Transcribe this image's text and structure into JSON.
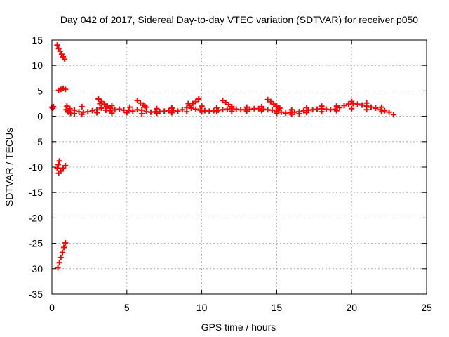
{
  "chart_data": {
    "type": "scatter",
    "title": "Day 042 of 2017, Sidereal Day-to-day VTEC variation (SDTVAR) for receiver p050",
    "xlabel": "GPS time / hours",
    "ylabel": "SDTVAR / TECUs",
    "xlim": [
      0,
      25
    ],
    "ylim": [
      -35,
      15
    ],
    "xticks": [
      0,
      5,
      10,
      15,
      20,
      25
    ],
    "yticks": [
      15,
      10,
      5,
      0,
      -5,
      -10,
      -15,
      -20,
      -25,
      -30,
      -35
    ],
    "grid": true,
    "marker": "plus",
    "series": [
      {
        "color": "#ff0000",
        "values": [
          [
            0.0,
            1.8
          ],
          [
            0.05,
            1.6
          ],
          [
            0.1,
            1.9
          ],
          [
            0.35,
            14.0
          ],
          [
            0.45,
            13.3
          ],
          [
            0.55,
            12.8
          ],
          [
            0.65,
            12.2
          ],
          [
            0.75,
            11.7
          ],
          [
            0.85,
            11.2
          ],
          [
            0.45,
            5.1
          ],
          [
            0.6,
            5.3
          ],
          [
            0.75,
            5.5
          ],
          [
            0.9,
            5.3
          ],
          [
            0.35,
            -10.2
          ],
          [
            0.42,
            -9.5
          ],
          [
            0.5,
            -8.8
          ],
          [
            0.45,
            -11.2
          ],
          [
            0.6,
            -10.8
          ],
          [
            0.75,
            -10.2
          ],
          [
            0.9,
            -9.7
          ],
          [
            0.4,
            -29.8
          ],
          [
            0.5,
            -28.8
          ],
          [
            0.6,
            -27.8
          ],
          [
            0.7,
            -26.8
          ],
          [
            0.8,
            -25.8
          ],
          [
            0.9,
            -24.9
          ],
          [
            1.2,
            1.5
          ],
          [
            1.5,
            1.2
          ],
          [
            1.8,
            0.9
          ],
          [
            2.1,
            0.8
          ],
          [
            2.4,
            0.9
          ],
          [
            2.7,
            1.1
          ],
          [
            3.0,
            1.3
          ],
          [
            3.3,
            1.6
          ],
          [
            3.6,
            1.2
          ],
          [
            3.9,
            1.1
          ],
          [
            4.2,
            1.3
          ],
          [
            4.5,
            1.4
          ],
          [
            4.8,
            1.2
          ],
          [
            5.1,
            1.1
          ],
          [
            5.4,
            1.0
          ],
          [
            5.7,
            1.3
          ],
          [
            6.0,
            1.2
          ],
          [
            6.3,
            0.9
          ],
          [
            6.6,
            0.8
          ],
          [
            6.9,
            0.9
          ],
          [
            7.2,
            0.9
          ],
          [
            7.5,
            1.0
          ],
          [
            7.8,
            1.1
          ],
          [
            8.1,
            1.1
          ],
          [
            8.4,
            1.0
          ],
          [
            8.7,
            1.3
          ],
          [
            9.0,
            1.7
          ],
          [
            9.3,
            1.6
          ],
          [
            9.6,
            1.4
          ],
          [
            9.9,
            1.2
          ],
          [
            10.2,
            1.1
          ],
          [
            10.5,
            1.0
          ],
          [
            10.8,
            1.1
          ],
          [
            11.1,
            1.2
          ],
          [
            11.4,
            1.3
          ],
          [
            11.7,
            1.4
          ],
          [
            12.0,
            1.5
          ],
          [
            12.3,
            1.4
          ],
          [
            12.6,
            1.3
          ],
          [
            12.9,
            1.3
          ],
          [
            13.2,
            1.4
          ],
          [
            13.5,
            1.5
          ],
          [
            13.8,
            1.5
          ],
          [
            14.1,
            1.4
          ],
          [
            14.4,
            1.3
          ],
          [
            14.7,
            1.2
          ],
          [
            15.0,
            1.0
          ],
          [
            15.3,
            0.8
          ],
          [
            15.6,
            0.6
          ],
          [
            15.9,
            0.7
          ],
          [
            16.2,
            0.8
          ],
          [
            16.5,
            0.9
          ],
          [
            16.8,
            1.1
          ],
          [
            17.1,
            1.2
          ],
          [
            17.4,
            1.3
          ],
          [
            17.7,
            1.4
          ],
          [
            18.0,
            1.5
          ],
          [
            18.3,
            1.4
          ],
          [
            18.6,
            1.3
          ],
          [
            18.9,
            1.4
          ],
          [
            19.2,
            1.7
          ],
          [
            19.5,
            2.1
          ],
          [
            19.8,
            2.4
          ],
          [
            20.1,
            2.5
          ],
          [
            20.4,
            2.4
          ],
          [
            20.7,
            2.2
          ],
          [
            21.0,
            2.0
          ],
          [
            21.3,
            1.8
          ],
          [
            21.6,
            1.6
          ],
          [
            21.9,
            1.3
          ],
          [
            22.2,
            1.1
          ],
          [
            22.5,
            0.8
          ],
          [
            22.8,
            0.3
          ],
          [
            1.5,
            0.5
          ],
          [
            2.0,
            0.4
          ],
          [
            3.0,
            0.7
          ],
          [
            4.0,
            0.6
          ],
          [
            5.0,
            0.7
          ],
          [
            6.0,
            0.5
          ],
          [
            7.0,
            0.6
          ],
          [
            8.0,
            0.7
          ],
          [
            9.0,
            0.9
          ],
          [
            10.0,
            0.9
          ],
          [
            11.0,
            0.9
          ],
          [
            12.0,
            1.0
          ],
          [
            13.0,
            1.0
          ],
          [
            14.0,
            1.1
          ],
          [
            15.0,
            0.6
          ],
          [
            16.0,
            0.4
          ],
          [
            16.5,
            0.5
          ],
          [
            17.0,
            0.7
          ],
          [
            18.0,
            0.9
          ],
          [
            19.0,
            1.1
          ],
          [
            20.0,
            1.5
          ],
          [
            21.0,
            1.3
          ],
          [
            22.0,
            0.9
          ],
          [
            1.0,
            2.0
          ],
          [
            2.0,
            1.9
          ],
          [
            3.2,
            2.5
          ],
          [
            4.0,
            2.1
          ],
          [
            5.2,
            1.8
          ],
          [
            6.2,
            2.0
          ],
          [
            7.0,
            1.5
          ],
          [
            8.0,
            1.6
          ],
          [
            9.1,
            2.5
          ],
          [
            10.0,
            2.0
          ],
          [
            11.0,
            1.7
          ],
          [
            12.0,
            1.8
          ],
          [
            13.0,
            1.8
          ],
          [
            14.0,
            1.9
          ],
          [
            15.1,
            1.5
          ],
          [
            16.0,
            1.3
          ],
          [
            17.0,
            1.7
          ],
          [
            18.0,
            2.0
          ],
          [
            19.0,
            2.0
          ],
          [
            20.0,
            2.9
          ],
          [
            21.0,
            2.6
          ],
          [
            22.0,
            1.8
          ],
          [
            3.1,
            3.4
          ],
          [
            3.3,
            2.9
          ],
          [
            3.5,
            2.4
          ],
          [
            3.7,
            2.0
          ],
          [
            3.9,
            1.6
          ],
          [
            5.7,
            3.1
          ],
          [
            5.9,
            2.6
          ],
          [
            6.1,
            2.2
          ],
          [
            6.3,
            1.8
          ],
          [
            9.8,
            3.4
          ],
          [
            9.6,
            2.9
          ],
          [
            9.4,
            2.5
          ],
          [
            9.2,
            2.1
          ],
          [
            11.4,
            3.1
          ],
          [
            11.6,
            2.7
          ],
          [
            11.8,
            2.3
          ],
          [
            12.0,
            1.9
          ],
          [
            14.4,
            3.3
          ],
          [
            14.6,
            2.9
          ],
          [
            14.8,
            2.4
          ],
          [
            15.0,
            2.0
          ],
          [
            15.2,
            1.6
          ],
          [
            0.95,
            1.3
          ],
          [
            1.05,
            1.0
          ],
          [
            1.1,
            0.8
          ],
          [
            1.25,
            0.6
          ]
        ]
      }
    ]
  }
}
